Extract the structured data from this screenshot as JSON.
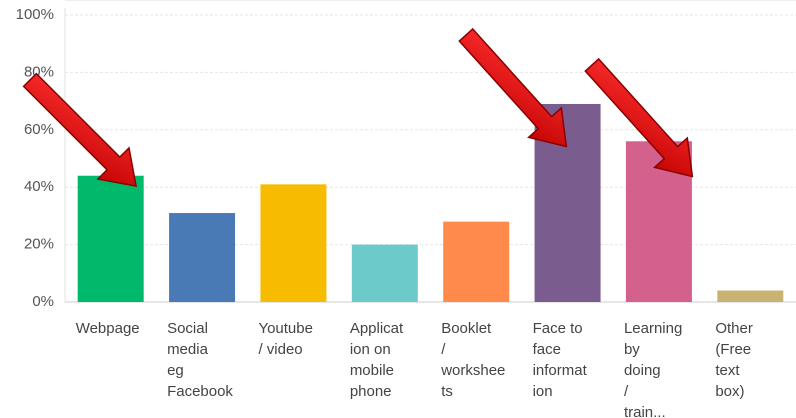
{
  "chart_data": {
    "type": "bar",
    "categories": [
      "Webpage",
      "Social\nmedia\neg\nFacebook",
      "Youtube\n/ video",
      "Applicat\nion on\nmobile\nphone",
      "Booklet\n/\nworkshee\nts",
      "Face to\nface\ninformat\nion",
      "Learning\nby\ndoing\n/\ntrain...",
      "Other\n(Free\ntext\nbox)"
    ],
    "values": [
      44,
      31,
      41,
      20,
      28,
      69,
      56,
      4
    ],
    "colors": [
      "#00b96b",
      "#4a7ab5",
      "#f7bb00",
      "#6ccacb",
      "#ff8a4c",
      "#7a5c8e",
      "#d4608e",
      "#c9b372"
    ],
    "ylim": [
      0,
      100
    ],
    "yticks": [
      {
        "value": 0,
        "label": "0%"
      },
      {
        "value": 20,
        "label": "20%"
      },
      {
        "value": 40,
        "label": "40%"
      },
      {
        "value": 60,
        "label": "60%"
      },
      {
        "value": 80,
        "label": "80%"
      },
      {
        "value": 100,
        "label": "100%"
      }
    ],
    "grid": true
  }
}
